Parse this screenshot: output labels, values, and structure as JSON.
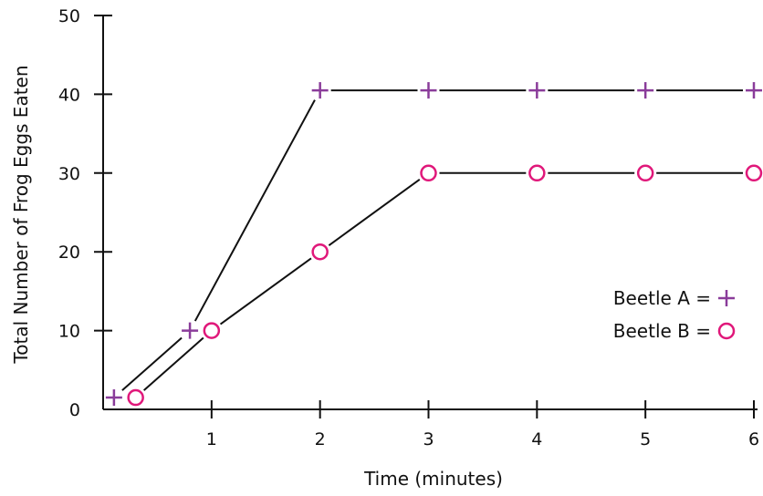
{
  "colors": {
    "beetle_a": "#8a3c9a",
    "beetle_b": "#e0187a",
    "line": "#111111",
    "axis": "#111111"
  },
  "chart_data": {
    "type": "line",
    "title": "",
    "xlabel": "Time (minutes)",
    "ylabel": "Total Number of Frog Eggs Eaten",
    "xlim": [
      0,
      6
    ],
    "ylim": [
      0,
      50
    ],
    "x_ticks": [
      1,
      2,
      3,
      4,
      5,
      6
    ],
    "y_ticks": [
      0,
      10,
      20,
      30,
      40,
      50
    ],
    "grid": false,
    "legend_position": "right",
    "series": [
      {
        "name": "Beetle A",
        "marker": "plus",
        "points": [
          [
            0.1,
            1.5
          ],
          [
            0.8,
            10
          ],
          [
            2,
            40.5
          ],
          [
            3,
            40.5
          ],
          [
            4,
            40.5
          ],
          [
            5,
            40.5
          ],
          [
            6,
            40.5
          ]
        ]
      },
      {
        "name": "Beetle B",
        "marker": "circle",
        "points": [
          [
            0.3,
            1.5
          ],
          [
            1,
            10
          ],
          [
            2,
            20
          ],
          [
            3,
            30
          ],
          [
            4,
            30
          ],
          [
            5,
            30
          ],
          [
            6,
            30
          ]
        ]
      }
    ],
    "legend": [
      {
        "label": "Beetle A =",
        "marker": "plus"
      },
      {
        "label": "Beetle B =",
        "marker": "circle"
      }
    ]
  }
}
